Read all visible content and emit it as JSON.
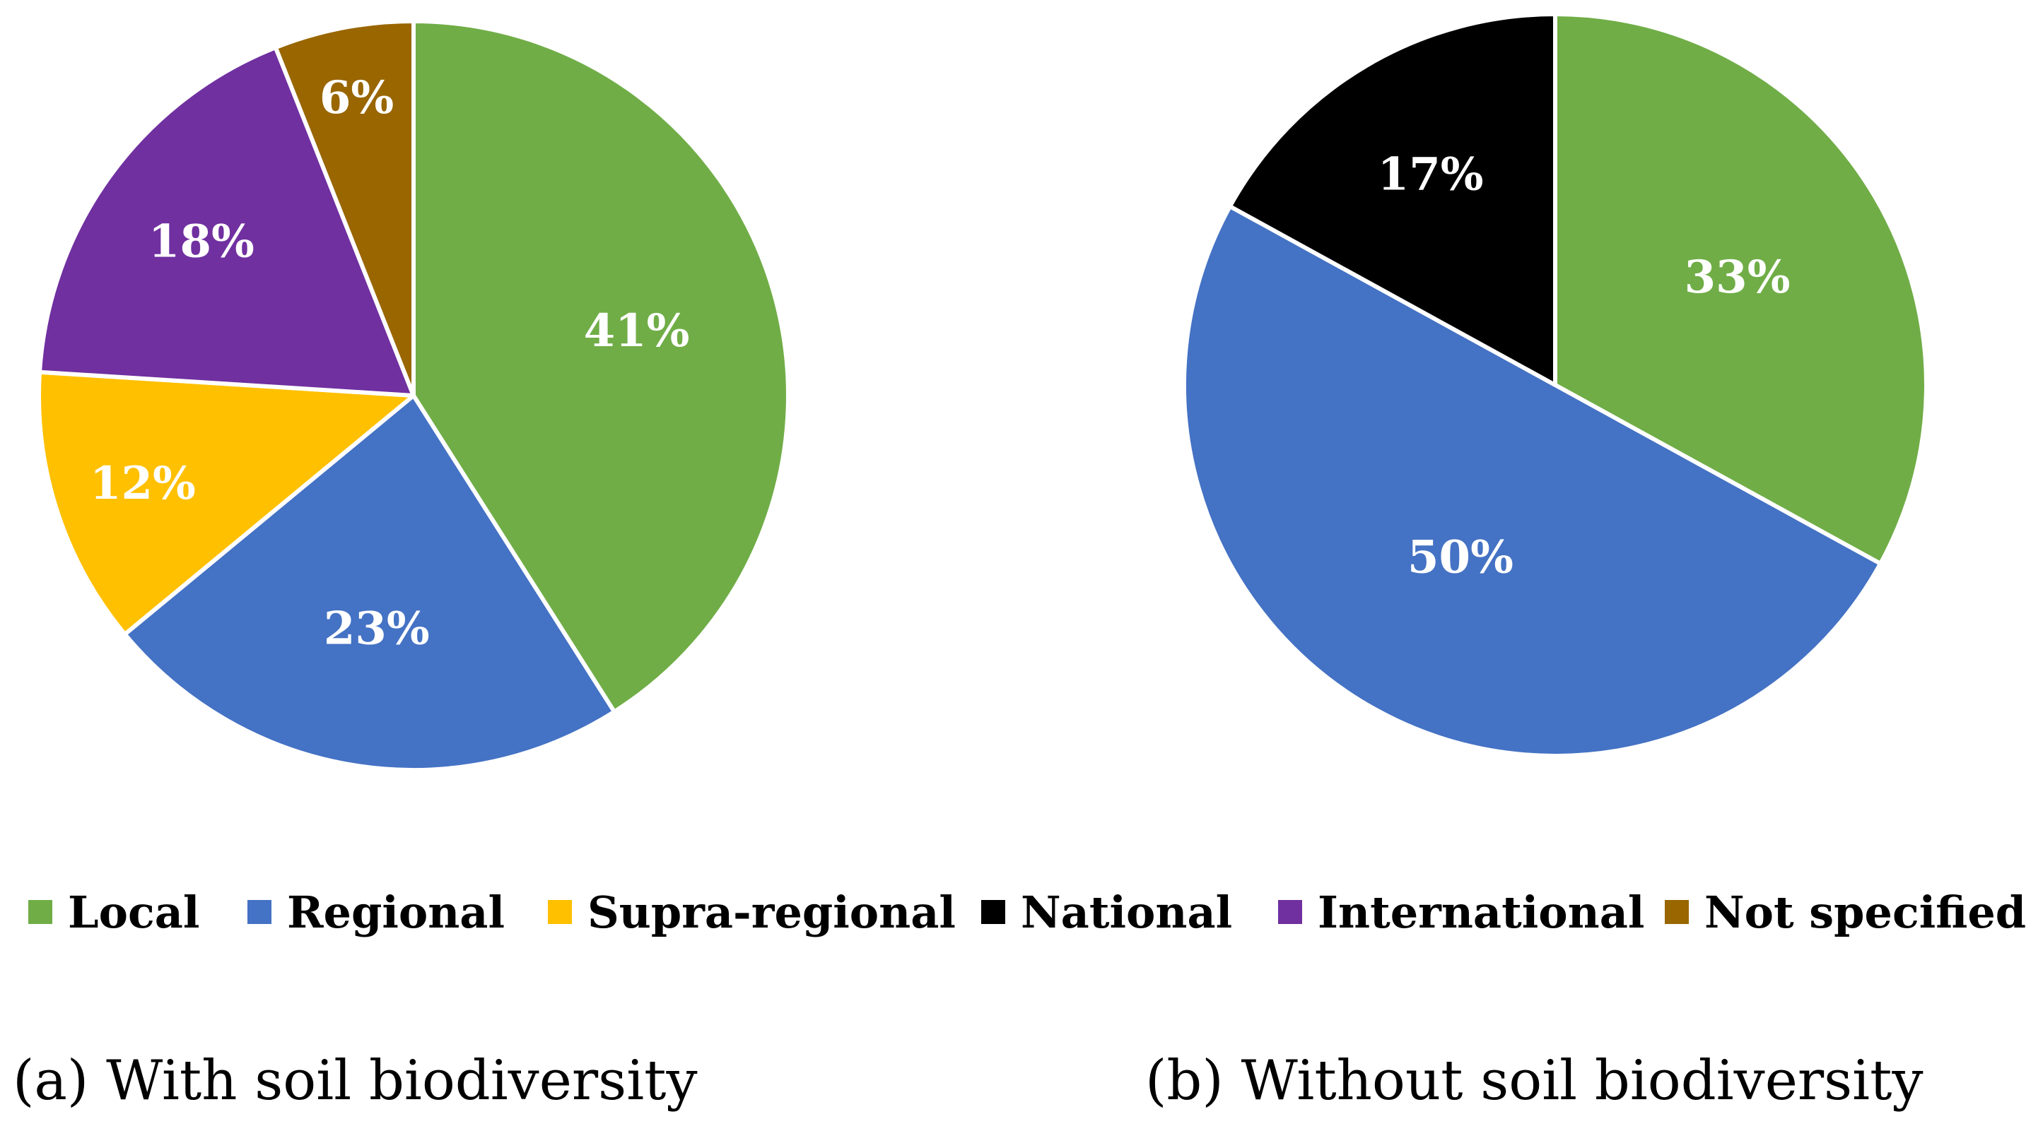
{
  "chart_data": [
    {
      "type": "pie",
      "caption": "(a) With soil biodiversity",
      "slices": [
        {
          "category": "Local",
          "value": 41,
          "label": "41%",
          "color": "#70AD47"
        },
        {
          "category": "Regional",
          "value": 23,
          "label": "23%",
          "color": "#4472C4"
        },
        {
          "category": "Supra-regional",
          "value": 12,
          "label": "12%",
          "color": "#FFC000"
        },
        {
          "category": "International",
          "value": 18,
          "label": "18%",
          "color": "#7030A0"
        },
        {
          "category": "Not specified",
          "value": 6,
          "label": "6%",
          "color": "#996600"
        }
      ]
    },
    {
      "type": "pie",
      "caption": "(b) Without soil biodiversity",
      "slices": [
        {
          "category": "Local",
          "value": 33,
          "label": "33%",
          "color": "#70AD47"
        },
        {
          "category": "Regional",
          "value": 50,
          "label": "50%",
          "color": "#4472C4"
        },
        {
          "category": "National",
          "value": 17,
          "label": "17%",
          "color": "#000000"
        }
      ]
    }
  ],
  "legend": [
    {
      "label": "Local",
      "color": "#70AD47"
    },
    {
      "label": "Regional",
      "color": "#4472C4"
    },
    {
      "label": "Supra-regional",
      "color": "#FFC000"
    },
    {
      "label": "National",
      "color": "#000000"
    },
    {
      "label": "International",
      "color": "#7030A0"
    },
    {
      "label": "Not specified",
      "color": "#996600"
    }
  ]
}
